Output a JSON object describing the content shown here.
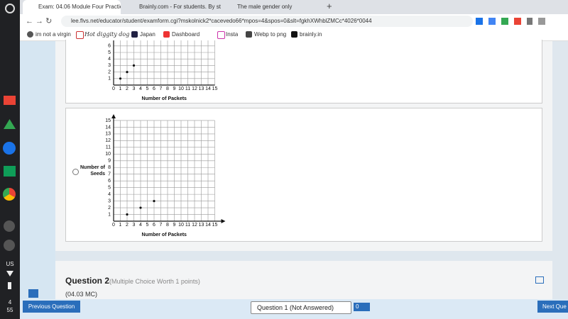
{
  "browser": {
    "tabs": [
      "Exam: 04.06 Module Four Practic",
      "Brainly.com - For students. By st",
      "The male gender only"
    ],
    "url": "lee.flvs.net/educator/student/examform.cgi?mskolnick2*cacevedo66*mpos=4&spos=0&slt=fgkhXWhblZMCc*4026*0044",
    "bookmarks": [
      "im not a virgin",
      "Hot diggity dog",
      "Japan",
      "Dashboard",
      "Insta",
      "Webp to png",
      "brainly.in"
    ]
  },
  "shelf": {
    "keyboard": "US",
    "time": [
      "4",
      "55"
    ]
  },
  "question_1": {
    "options": [
      {
        "x_label": "Number of Packets",
        "x_ticks": [
          0,
          1,
          2,
          3,
          4,
          5,
          6,
          7,
          8,
          9,
          10,
          11,
          12,
          13,
          14,
          15
        ],
        "y_ticks": [
          1,
          2,
          3,
          4,
          5,
          6
        ],
        "points": {
          "x": [
            1,
            2,
            3
          ],
          "y": [
            1,
            2,
            3
          ]
        }
      },
      {
        "y_label": [
          "Number of",
          "Seeds"
        ],
        "x_label": "Number of Packets",
        "x_ticks": [
          0,
          1,
          2,
          3,
          4,
          5,
          6,
          7,
          8,
          9,
          10,
          11,
          12,
          13,
          14,
          15
        ],
        "y_ticks": [
          1,
          2,
          3,
          4,
          5,
          6,
          7,
          8,
          9,
          10,
          11,
          12,
          13,
          14,
          15
        ],
        "points": {
          "x": [
            2,
            4,
            6
          ],
          "y": [
            1,
            2,
            3
          ]
        }
      }
    ]
  },
  "question_2": {
    "title": "Question 2",
    "worth": "(Multiple Choice Worth 1 points)",
    "code": "(04.03 MC)"
  },
  "footer": {
    "previous": "Previous Question",
    "select": "Question 1 (Not Answered)",
    "flag_count": "0",
    "next": "Next Que"
  }
}
